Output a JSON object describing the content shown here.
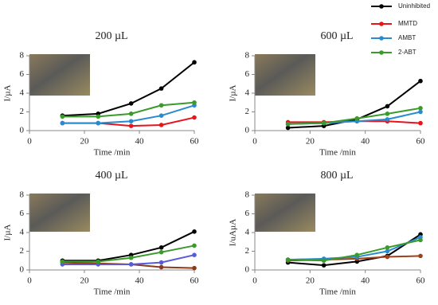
{
  "chart_data": [
    {
      "type": "line",
      "title": "200 µL",
      "xlabel": "Time /min",
      "ylabel": "I/µA",
      "x": [
        12,
        25,
        37,
        48,
        60
      ],
      "xlim": [
        0,
        60
      ],
      "xticks": [
        0,
        20,
        40,
        60
      ],
      "ylim": [
        0,
        8
      ],
      "yticks": [
        0,
        2,
        4,
        6,
        8
      ],
      "series": [
        {
          "name": "Uninhibited",
          "color": "#000000",
          "values": [
            1.6,
            1.8,
            2.9,
            4.5,
            7.3
          ]
        },
        {
          "name": "MMTD",
          "color": "#e8141c",
          "values": [
            0.8,
            0.8,
            0.5,
            0.6,
            1.4
          ]
        },
        {
          "name": "AMBT",
          "color": "#2a8ad0",
          "values": [
            0.8,
            0.8,
            1.0,
            1.6,
            2.7
          ]
        },
        {
          "name": "2-ABT",
          "color": "#3a9a2a",
          "values": [
            1.5,
            1.5,
            1.8,
            2.7,
            3.0
          ]
        }
      ]
    },
    {
      "type": "line",
      "title": "600 µL",
      "xlabel": "Time /min",
      "ylabel": "I/µA",
      "x": [
        12,
        25,
        37,
        48,
        60
      ],
      "xlim": [
        0,
        60
      ],
      "xticks": [
        0,
        20,
        40,
        60
      ],
      "ylim": [
        0,
        8
      ],
      "yticks": [
        0,
        2,
        4,
        6,
        8
      ],
      "series": [
        {
          "color": "#000000",
          "values": [
            0.3,
            0.5,
            1.2,
            2.6,
            5.3
          ]
        },
        {
          "color": "#e8141c",
          "values": [
            0.9,
            0.9,
            1.0,
            1.0,
            0.8
          ]
        },
        {
          "color": "#2a8ad0",
          "values": [
            0.7,
            0.8,
            1.0,
            1.2,
            2.0
          ]
        },
        {
          "color": "#3a9a2a",
          "values": [
            0.7,
            0.8,
            1.3,
            1.8,
            2.4
          ]
        }
      ]
    },
    {
      "type": "line",
      "title": "400 µL",
      "xlabel": "Time /min",
      "ylabel": "I/µA",
      "x": [
        12,
        25,
        37,
        48,
        60
      ],
      "xlim": [
        0,
        60
      ],
      "xticks": [
        0,
        20,
        40,
        60
      ],
      "ylim": [
        0,
        8
      ],
      "yticks": [
        0,
        2,
        4,
        6,
        8
      ],
      "series": [
        {
          "color": "#000000",
          "values": [
            1.0,
            1.0,
            1.6,
            2.4,
            4.1
          ]
        },
        {
          "color": "#8b3a1a",
          "values": [
            0.8,
            0.7,
            0.6,
            0.3,
            0.2
          ]
        },
        {
          "color": "#5a5ad8",
          "values": [
            0.6,
            0.6,
            0.6,
            0.8,
            1.6
          ]
        },
        {
          "color": "#3a9a2a",
          "values": [
            0.9,
            0.9,
            1.3,
            1.9,
            2.6
          ]
        }
      ]
    },
    {
      "type": "line",
      "title": "800 µL",
      "xlabel": "Time /min",
      "ylabel": "I/uAµA",
      "x": [
        12,
        25,
        37,
        48,
        60
      ],
      "xlim": [
        0,
        60
      ],
      "xticks": [
        0,
        20,
        40,
        60
      ],
      "ylim": [
        0,
        8
      ],
      "yticks": [
        0,
        2,
        4,
        6,
        8
      ],
      "series": [
        {
          "color": "#000000",
          "values": [
            0.8,
            0.5,
            0.9,
            1.5,
            3.8
          ]
        },
        {
          "color": "#a0401a",
          "values": [
            1.0,
            1.1,
            1.2,
            1.4,
            1.5
          ]
        },
        {
          "color": "#2a8ad0",
          "values": [
            1.1,
            1.2,
            1.4,
            2.0,
            3.5
          ]
        },
        {
          "color": "#3a9a2a",
          "values": [
            1.1,
            1.0,
            1.6,
            2.4,
            3.2
          ]
        }
      ]
    }
  ]
}
